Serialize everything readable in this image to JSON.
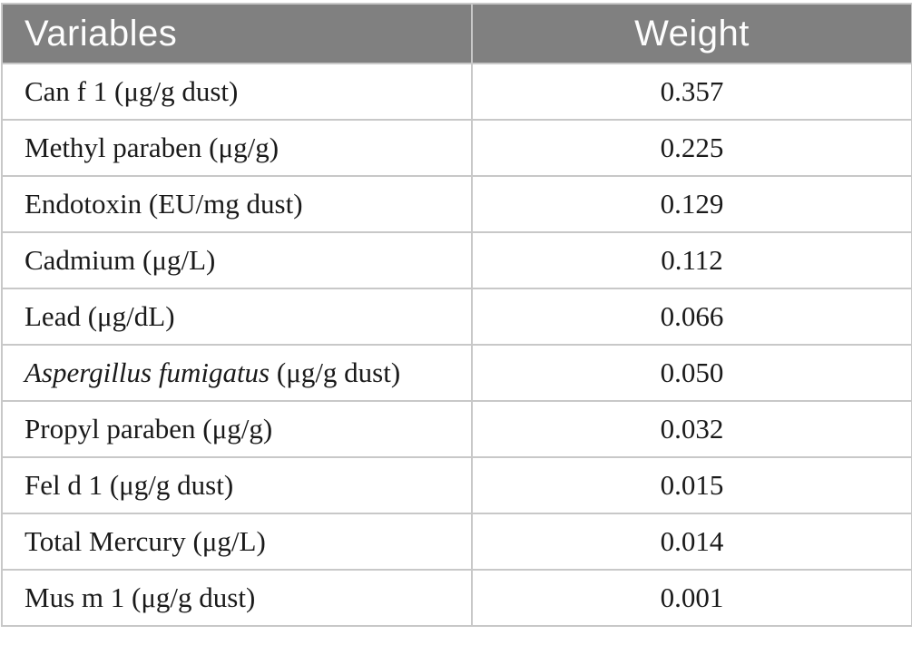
{
  "colors": {
    "header_bg": "#808080",
    "header_text": "#fdfdfd",
    "body_text": "#1a1a1a",
    "grid_border": "#c8c8c8"
  },
  "table": {
    "columns": [
      {
        "label": "Variables"
      },
      {
        "label": "Weight"
      }
    ],
    "rows": [
      {
        "variable_italic": "",
        "variable": "Can f 1 (μg/g dust)",
        "weight": "0.357"
      },
      {
        "variable_italic": "",
        "variable": "Methyl paraben (μg/g)",
        "weight": "0.225"
      },
      {
        "variable_italic": "",
        "variable": "Endotoxin (EU/mg dust)",
        "weight": "0.129"
      },
      {
        "variable_italic": "",
        "variable": "Cadmium (μg/L)",
        "weight": "0.112"
      },
      {
        "variable_italic": "",
        "variable": "Lead (μg/dL)",
        "weight": "0.066"
      },
      {
        "variable_italic": "Aspergillus fumigatus",
        "variable": " (μg/g dust)",
        "weight": "0.050"
      },
      {
        "variable_italic": "",
        "variable": "Propyl paraben (μg/g)",
        "weight": "0.032"
      },
      {
        "variable_italic": "",
        "variable": "Fel d 1 (μg/g dust)",
        "weight": "0.015"
      },
      {
        "variable_italic": "",
        "variable": "Total Mercury (μg/L)",
        "weight": "0.014"
      },
      {
        "variable_italic": "",
        "variable": "Mus m 1 (μg/g dust)",
        "weight": "0.001"
      }
    ]
  },
  "chart_data": {
    "type": "table",
    "title": "",
    "columns": [
      "Variables",
      "Weight"
    ],
    "categories": [
      "Can f 1 (μg/g dust)",
      "Methyl paraben (μg/g)",
      "Endotoxin (EU/mg dust)",
      "Cadmium (μg/L)",
      "Lead (μg/dL)",
      "Aspergillus fumigatus (μg/g dust)",
      "Propyl paraben (μg/g)",
      "Fel d 1 (μg/g dust)",
      "Total Mercury (μg/L)",
      "Mus m 1 (μg/g dust)"
    ],
    "values": [
      0.357,
      0.225,
      0.129,
      0.112,
      0.066,
      0.05,
      0.032,
      0.015,
      0.014,
      0.001
    ]
  }
}
